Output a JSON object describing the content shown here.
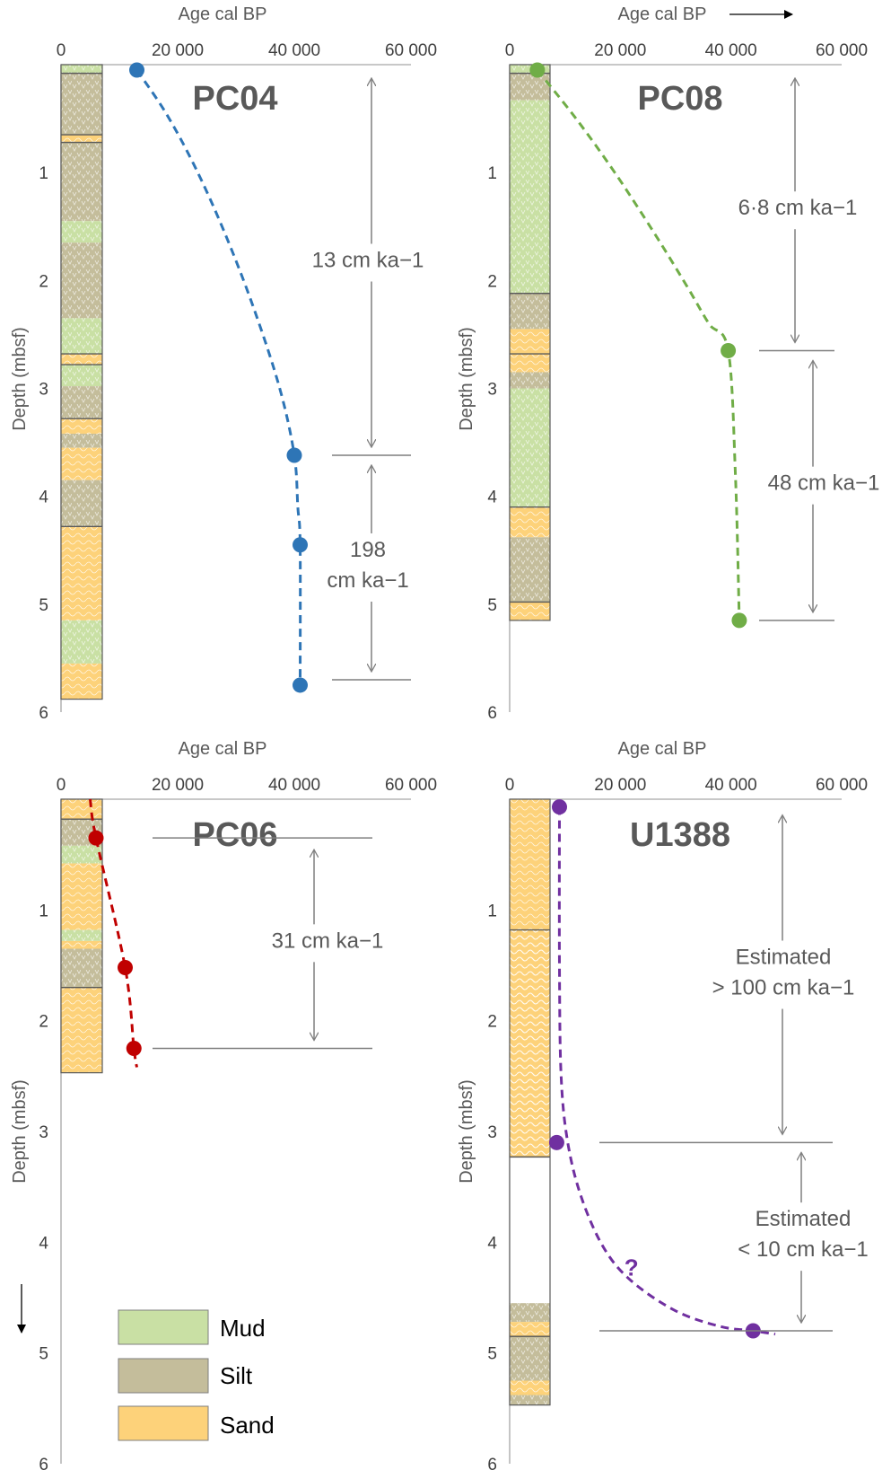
{
  "colors": {
    "mud": "#c9e0a4",
    "silt": "#c4bd9b",
    "sand": "#fdd27a",
    "axis": "#a6a6a6",
    "arrow": "#7f7f7f",
    "boundary": "#595959"
  },
  "legend": [
    {
      "label": "Mud",
      "color": "#c9e0a4"
    },
    {
      "label": "Silt",
      "color": "#c4bd9b"
    },
    {
      "label": "Sand",
      "color": "#fdd27a"
    }
  ],
  "chart_data": [
    {
      "type": "line",
      "core": "PC04",
      "title": "PC04",
      "xlabel": "Age cal BP",
      "ylabel": "Depth (mbsf)",
      "xlim": [
        0,
        60000
      ],
      "ylim": [
        0,
        6
      ],
      "xticks": [
        "0",
        "20 000",
        "40 000",
        "60 000"
      ],
      "yticks": [
        "1",
        "2",
        "3",
        "4",
        "5",
        "6"
      ],
      "series_color": "#2e75b6",
      "dates": [
        {
          "x": 13000,
          "y": 0.05
        },
        {
          "x": 40000,
          "y": 3.62
        },
        {
          "x": 41000,
          "y": 4.45
        },
        {
          "x": 41000,
          "y": 5.75
        }
      ],
      "curve": [
        [
          13000,
          0.05
        ],
        [
          18000,
          0.45
        ],
        [
          23000,
          0.95
        ],
        [
          28000,
          1.55
        ],
        [
          33000,
          2.25
        ],
        [
          37500,
          3.0
        ],
        [
          40000,
          3.62
        ],
        [
          40600,
          4.1
        ],
        [
          41000,
          4.45
        ],
        [
          41000,
          5.75
        ]
      ],
      "rates": [
        {
          "text": [
            "13 cm ka−1"
          ],
          "top": 0.05,
          "bottom": 3.62
        },
        {
          "text": [
            "198",
            "cm ka−1"
          ],
          "top": 3.62,
          "bottom": 5.7
        }
      ],
      "lithology": [
        {
          "from": 0.0,
          "to": 0.08,
          "type": "mud"
        },
        {
          "from": 0.08,
          "to": 0.65,
          "type": "silt"
        },
        {
          "from": 0.65,
          "to": 0.72,
          "type": "sand"
        },
        {
          "from": 0.72,
          "to": 1.45,
          "type": "silt"
        },
        {
          "from": 1.45,
          "to": 1.65,
          "type": "mud"
        },
        {
          "from": 1.65,
          "to": 2.35,
          "type": "silt"
        },
        {
          "from": 2.35,
          "to": 2.68,
          "type": "mud"
        },
        {
          "from": 2.68,
          "to": 2.78,
          "type": "sand"
        },
        {
          "from": 2.78,
          "to": 2.98,
          "type": "mud"
        },
        {
          "from": 2.98,
          "to": 3.28,
          "type": "silt"
        },
        {
          "from": 3.28,
          "to": 3.42,
          "type": "sand"
        },
        {
          "from": 3.42,
          "to": 3.55,
          "type": "silt"
        },
        {
          "from": 3.55,
          "to": 3.85,
          "type": "sand"
        },
        {
          "from": 3.85,
          "to": 4.28,
          "type": "silt"
        },
        {
          "from": 4.28,
          "to": 5.15,
          "type": "sand"
        },
        {
          "from": 5.15,
          "to": 5.55,
          "type": "mud"
        },
        {
          "from": 5.55,
          "to": 5.88,
          "type": "sand"
        }
      ],
      "boundaries": [
        0.08,
        0.65,
        0.72,
        2.68,
        2.78,
        3.28,
        4.28
      ]
    },
    {
      "type": "line",
      "core": "PC08",
      "title": "PC08",
      "xlabel": "Age cal BP",
      "ylabel": "Depth (mbsf)",
      "xlim": [
        0,
        60000
      ],
      "ylim": [
        0,
        6
      ],
      "xticks": [
        "0",
        "20 000",
        "40 000",
        "60 000"
      ],
      "yticks": [
        "1",
        "2",
        "3",
        "4",
        "5",
        "6"
      ],
      "x_arrow": true,
      "series_color": "#70ad47",
      "dates": [
        {
          "x": 5000,
          "y": 0.05
        },
        {
          "x": 39500,
          "y": 2.65
        },
        {
          "x": 41500,
          "y": 5.15
        }
      ],
      "curve": [
        [
          5000,
          0.05
        ],
        [
          12000,
          0.5
        ],
        [
          19000,
          1.0
        ],
        [
          26000,
          1.55
        ],
        [
          32000,
          2.05
        ],
        [
          36000,
          2.4
        ],
        [
          39500,
          2.65
        ],
        [
          40800,
          3.8
        ],
        [
          41500,
          5.15
        ]
      ],
      "rates": [
        {
          "text": [
            "6·8 cm ka−1"
          ],
          "top": 0.05,
          "bottom": 2.65
        },
        {
          "text": [
            "48 cm ka−1"
          ],
          "top": 2.65,
          "bottom": 5.15
        }
      ],
      "lithology": [
        {
          "from": 0.0,
          "to": 0.08,
          "type": "mud"
        },
        {
          "from": 0.08,
          "to": 0.33,
          "type": "silt"
        },
        {
          "from": 0.33,
          "to": 2.12,
          "type": "mud"
        },
        {
          "from": 2.12,
          "to": 2.45,
          "type": "silt"
        },
        {
          "from": 2.45,
          "to": 2.85,
          "type": "sand"
        },
        {
          "from": 2.85,
          "to": 3.0,
          "type": "silt"
        },
        {
          "from": 3.0,
          "to": 4.1,
          "type": "mud"
        },
        {
          "from": 4.1,
          "to": 4.38,
          "type": "sand"
        },
        {
          "from": 4.38,
          "to": 4.98,
          "type": "silt"
        },
        {
          "from": 4.98,
          "to": 5.15,
          "type": "sand"
        }
      ],
      "boundaries": [
        0.08,
        2.12,
        2.68,
        4.1,
        4.98
      ]
    },
    {
      "type": "line",
      "core": "PC06",
      "title": "PC06",
      "xlabel": "Age cal BP",
      "ylabel": "Depth (mbsf)",
      "xlim": [
        0,
        60000
      ],
      "ylim": [
        0,
        6
      ],
      "xticks": [
        "0",
        "20 000",
        "40 000",
        "60 000"
      ],
      "yticks": [
        "1",
        "2",
        "3",
        "4",
        "5",
        "6"
      ],
      "y_arrow": true,
      "series_color": "#c00000",
      "dates": [
        {
          "x": 6000,
          "y": 0.35
        },
        {
          "x": 11000,
          "y": 1.52
        },
        {
          "x": 12500,
          "y": 2.25
        }
      ],
      "curve": [
        [
          5000,
          0.0
        ],
        [
          6000,
          0.35
        ],
        [
          11000,
          1.52
        ],
        [
          12500,
          2.25
        ],
        [
          13000,
          2.42
        ]
      ],
      "rates": [
        {
          "text": [
            "31 cm ka−1"
          ],
          "top": 0.35,
          "bottom": 2.25
        }
      ],
      "lithology": [
        {
          "from": 0.0,
          "to": 0.18,
          "type": "sand"
        },
        {
          "from": 0.18,
          "to": 0.42,
          "type": "silt"
        },
        {
          "from": 0.42,
          "to": 0.58,
          "type": "mud"
        },
        {
          "from": 0.58,
          "to": 1.18,
          "type": "sand"
        },
        {
          "from": 1.18,
          "to": 1.28,
          "type": "mud"
        },
        {
          "from": 1.28,
          "to": 1.35,
          "type": "sand"
        },
        {
          "from": 1.35,
          "to": 1.7,
          "type": "silt"
        },
        {
          "from": 1.7,
          "to": 2.47,
          "type": "sand"
        }
      ],
      "boundaries": [
        0.18,
        1.7
      ]
    },
    {
      "type": "line",
      "core": "U1388",
      "title": "U1388",
      "xlabel": "Age cal BP",
      "ylabel": "Depth (mbsf)",
      "xlim": [
        0,
        60000
      ],
      "ylim": [
        0,
        6
      ],
      "xticks": [
        "0",
        "20 000",
        "40 000",
        "60 000"
      ],
      "yticks": [
        "1",
        "2",
        "3",
        "4",
        "5",
        "6"
      ],
      "series_color": "#7030a0",
      "dates": [
        {
          "x": 9000,
          "y": 0.07
        },
        {
          "x": 8500,
          "y": 3.1
        },
        {
          "x": 44000,
          "y": 4.8
        }
      ],
      "curve": [
        [
          9000,
          0.07
        ],
        [
          9000,
          1.5
        ],
        [
          9300,
          2.5
        ],
        [
          10500,
          3.1
        ],
        [
          13000,
          3.6
        ],
        [
          17000,
          4.05
        ],
        [
          22000,
          4.35
        ],
        [
          30000,
          4.62
        ],
        [
          38000,
          4.76
        ],
        [
          44000,
          4.8
        ],
        [
          48000,
          4.83
        ]
      ],
      "question": {
        "text": "?",
        "x": 22000,
        "y": 4.3
      },
      "rates": [
        {
          "text": [
            "Estimated",
            "> 100 cm ka−1"
          ],
          "top": 0.07,
          "bottom": 3.1
        },
        {
          "text": [
            "Estimated",
            "< 10 cm ka−1"
          ],
          "top": 3.1,
          "bottom": 4.8
        }
      ],
      "lithology": [
        {
          "from": 0.0,
          "to": 1.18,
          "type": "sand"
        },
        {
          "from": 1.18,
          "to": 3.23,
          "type": "sand_hatch"
        },
        {
          "from": 3.23,
          "to": 4.55,
          "type": "blank"
        },
        {
          "from": 4.55,
          "to": 4.72,
          "type": "silt"
        },
        {
          "from": 4.72,
          "to": 4.85,
          "type": "sand"
        },
        {
          "from": 4.85,
          "to": 5.25,
          "type": "silt"
        },
        {
          "from": 5.25,
          "to": 5.38,
          "type": "sand"
        },
        {
          "from": 5.38,
          "to": 5.47,
          "type": "silt"
        }
      ],
      "boundaries": [
        1.18,
        3.23,
        4.85
      ]
    }
  ]
}
